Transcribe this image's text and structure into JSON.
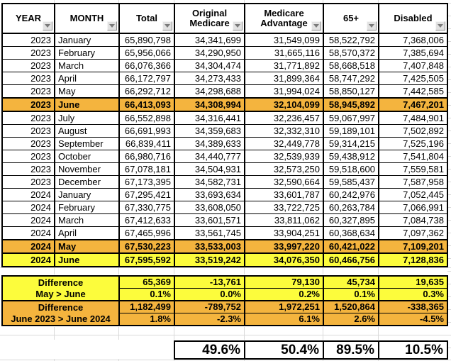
{
  "header": {
    "labels": [
      "YEAR",
      "MONTH",
      "Total",
      "Original Medicare",
      "Medicare Advantage",
      "65+",
      "Disabled"
    ],
    "filter_icon": "chevron-down"
  },
  "table": {
    "rows": [
      {
        "cells": [
          "2023",
          "January",
          "65,890,798",
          "34,341,699",
          "31,549,099",
          "58,522,792",
          "7,368,006"
        ],
        "highlight": ""
      },
      {
        "cells": [
          "2023",
          "February",
          "65,956,066",
          "34,290,950",
          "31,665,116",
          "58,570,372",
          "7,385,694"
        ],
        "highlight": ""
      },
      {
        "cells": [
          "2023",
          "March",
          "66,076,366",
          "34,304,474",
          "31,771,892",
          "58,668,518",
          "7,407,848"
        ],
        "highlight": ""
      },
      {
        "cells": [
          "2023",
          "April",
          "66,172,797",
          "34,273,433",
          "31,899,364",
          "58,747,292",
          "7,425,505"
        ],
        "highlight": ""
      },
      {
        "cells": [
          "2023",
          "May",
          "66,292,712",
          "34,298,688",
          "31,994,024",
          "58,850,127",
          "7,442,585"
        ],
        "highlight": ""
      },
      {
        "cells": [
          "2023",
          "June",
          "66,413,093",
          "34,308,994",
          "32,104,099",
          "58,945,892",
          "7,467,201"
        ],
        "highlight": "orange"
      },
      {
        "cells": [
          "2023",
          "July",
          "66,552,898",
          "34,316,441",
          "32,236,457",
          "59,067,997",
          "7,484,901"
        ],
        "highlight": ""
      },
      {
        "cells": [
          "2023",
          "August",
          "66,691,993",
          "34,359,683",
          "32,332,310",
          "59,189,101",
          "7,502,892"
        ],
        "highlight": ""
      },
      {
        "cells": [
          "2023",
          "September",
          "66,839,411",
          "34,389,633",
          "32,449,778",
          "59,314,215",
          "7,525,196"
        ],
        "highlight": ""
      },
      {
        "cells": [
          "2023",
          "October",
          "66,980,716",
          "34,440,777",
          "32,539,939",
          "59,438,912",
          "7,541,804"
        ],
        "highlight": ""
      },
      {
        "cells": [
          "2023",
          "November",
          "67,078,181",
          "34,504,931",
          "32,573,250",
          "59,518,600",
          "7,559,581"
        ],
        "highlight": ""
      },
      {
        "cells": [
          "2023",
          "December",
          "67,173,395",
          "34,582,731",
          "32,590,664",
          "59,585,437",
          "7,587,958"
        ],
        "highlight": ""
      },
      {
        "cells": [
          "2024",
          "January",
          "67,295,421",
          "33,693,634",
          "33,601,787",
          "60,242,976",
          "7,052,445"
        ],
        "highlight": ""
      },
      {
        "cells": [
          "2024",
          "February",
          "67,330,775",
          "33,608,050",
          "33,722,725",
          "60,263,784",
          "7,066,991"
        ],
        "highlight": ""
      },
      {
        "cells": [
          "2024",
          "March",
          "67,412,633",
          "33,601,571",
          "33,811,062",
          "60,327,895",
          "7,084,738"
        ],
        "highlight": ""
      },
      {
        "cells": [
          "2024",
          "April",
          "67,465,996",
          "33,561,745",
          "33,904,251",
          "60,368,634",
          "7,097,362"
        ],
        "highlight": ""
      },
      {
        "cells": [
          "2024",
          "May",
          "67,530,223",
          "33,533,003",
          "33,997,220",
          "60,421,022",
          "7,109,201"
        ],
        "highlight": "orange"
      },
      {
        "cells": [
          "2024",
          "June",
          "67,595,592",
          "33,519,242",
          "34,076,350",
          "60,466,756",
          "7,128,836"
        ],
        "highlight": "yellow"
      }
    ]
  },
  "summaries": [
    {
      "label_line1": "Difference",
      "label_line2": "May > June",
      "values": [
        "65,369",
        "-13,761",
        "79,130",
        "45,734",
        "19,635"
      ],
      "percents": [
        "0.1%",
        "0.0%",
        "0.2%",
        "0.1%",
        "0.3%"
      ],
      "color": "yellow"
    },
    {
      "label_line1": "Difference",
      "label_line2": "June 2023 > June 2024",
      "values": [
        "1,182,499",
        "-789,752",
        "1,972,251",
        "1,520,864",
        "-338,365"
      ],
      "percents": [
        "1.8%",
        "-2.3%",
        "6.1%",
        "2.6%",
        "-4.5%"
      ],
      "color": "orange"
    }
  ],
  "totals": {
    "values": [
      "49.6%",
      "50.4%",
      "89.5%",
      "10.5%"
    ]
  },
  "colors": {
    "highlight_orange": "#F4B43E",
    "highlight_yellow": "#FCFC3C"
  }
}
